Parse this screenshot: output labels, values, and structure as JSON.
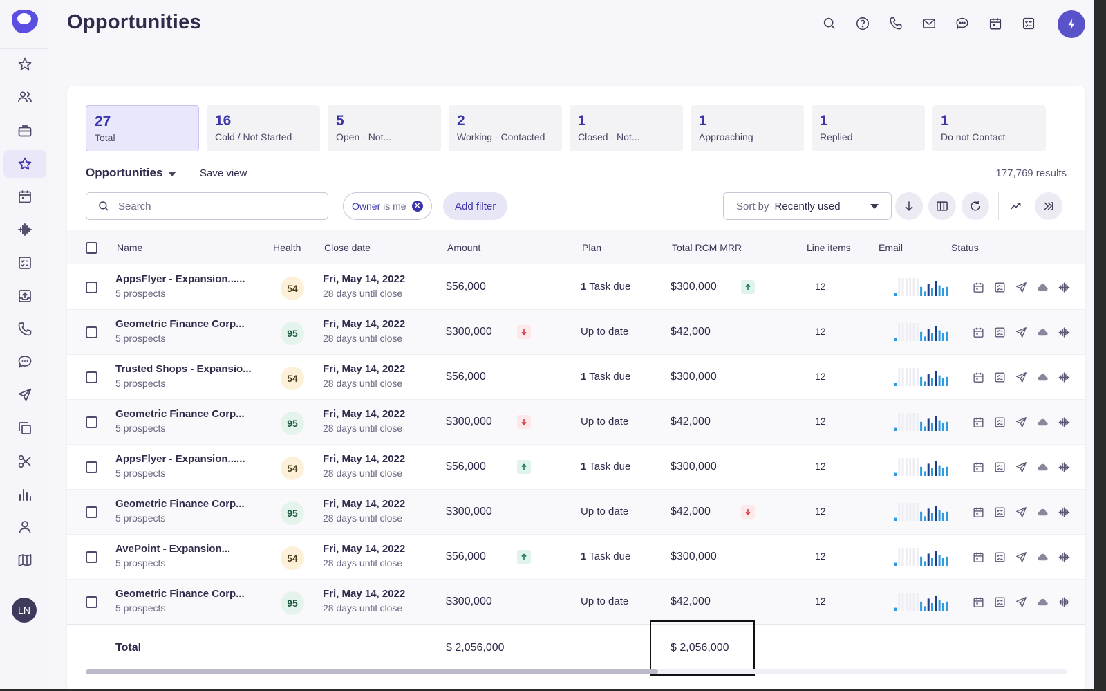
{
  "page": {
    "title": "Opportunities"
  },
  "sidebar": {
    "items": [
      {
        "name": "star"
      },
      {
        "name": "people"
      },
      {
        "name": "briefcase"
      },
      {
        "name": "star",
        "active": true
      },
      {
        "name": "calendar"
      },
      {
        "name": "waveform"
      },
      {
        "name": "tasks"
      },
      {
        "name": "upload"
      },
      {
        "name": "phone"
      },
      {
        "name": "chat"
      },
      {
        "name": "send"
      },
      {
        "name": "copy"
      },
      {
        "name": "scissors"
      },
      {
        "name": "bar-chart"
      },
      {
        "name": "person"
      },
      {
        "name": "map"
      }
    ],
    "avatar": "LN"
  },
  "header": {
    "icons": [
      "search-icon",
      "help-icon",
      "phone-icon",
      "mail-icon",
      "chat-icon",
      "calendar-icon",
      "tasks-icon"
    ],
    "action_button": "bolt-icon"
  },
  "stats": [
    {
      "count": "27",
      "label": "Total",
      "active": true
    },
    {
      "count": "16",
      "label": "Cold / Not Started"
    },
    {
      "count": "5",
      "label": "Open - Not..."
    },
    {
      "count": "2",
      "label": "Working - Contacted"
    },
    {
      "count": "1",
      "label": "Closed - Not..."
    },
    {
      "count": "1",
      "label": "Approaching"
    },
    {
      "count": "1",
      "label": "Replied"
    },
    {
      "count": "1",
      "label": "Do not Contact"
    }
  ],
  "toolbar": {
    "view_name": "Opportunities",
    "save_view": "Save view",
    "results": "177,769 results",
    "search_placeholder": "Search",
    "owner_chip_key": "Owner",
    "owner_chip_value": "is me",
    "add_filter": "Add filter",
    "sort_label": "Sort by",
    "sort_value": "Recently used"
  },
  "table": {
    "columns": {
      "name": "Name",
      "health": "Health",
      "close_date": "Close date",
      "amount": "Amount",
      "plan": "Plan",
      "total_rcm_mrr": "Total RCM MRR",
      "line_items": "Line items",
      "email": "Email",
      "status": "Status"
    },
    "rows": [
      {
        "name": "AppsFlyer - Expansion......",
        "prospects": "5 prospects",
        "health": "54",
        "date": "Fri, May 14, 2022",
        "until": "28 days until close",
        "amount": "$56,000",
        "amount_trend": "",
        "plan_bold": "1",
        "plan": "Task due",
        "mrr": "$300,000",
        "mrr_trend": "up",
        "line_items": "12"
      },
      {
        "name": "Geometric Finance Corp...",
        "prospects": "5 prospects",
        "health": "95",
        "date": "Fri, May 14, 2022",
        "until": "28 days until close",
        "amount": "$300,000",
        "amount_trend": "down",
        "plan_bold": "",
        "plan": "Up to date",
        "mrr": "$42,000",
        "mrr_trend": "",
        "line_items": "12"
      },
      {
        "name": "Trusted Shops - Expansio...",
        "prospects": "5 prospects",
        "health": "54",
        "date": "Fri, May 14, 2022",
        "until": "28 days until close",
        "amount": "$56,000",
        "amount_trend": "",
        "plan_bold": "1",
        "plan": "Task due",
        "mrr": "$300,000",
        "mrr_trend": "",
        "line_items": "12"
      },
      {
        "name": "Geometric Finance Corp...",
        "prospects": "5 prospects",
        "health": "95",
        "date": "Fri, May 14, 2022",
        "until": "28 days until close",
        "amount": "$300,000",
        "amount_trend": "down",
        "plan_bold": "",
        "plan": "Up to date",
        "mrr": "$42,000",
        "mrr_trend": "",
        "line_items": "12"
      },
      {
        "name": "AppsFlyer - Expansion......",
        "prospects": "5 prospects",
        "health": "54",
        "date": "Fri, May 14, 2022",
        "until": "28 days until close",
        "amount": "$56,000",
        "amount_trend": "up",
        "plan_bold": "1",
        "plan": "Task due",
        "mrr": "$300,000",
        "mrr_trend": "",
        "line_items": "12"
      },
      {
        "name": "Geometric Finance Corp...",
        "prospects": "5 prospects",
        "health": "95",
        "date": "Fri, May 14, 2022",
        "until": "28 days until close",
        "amount": "$300,000",
        "amount_trend": "",
        "plan_bold": "",
        "plan": "Up to date",
        "mrr": "$42,000",
        "mrr_trend": "down",
        "line_items": "12"
      },
      {
        "name": "AvePoint - Expansion...",
        "prospects": "5 prospects",
        "health": "54",
        "date": "Fri, May 14, 2022",
        "until": "28 days until close",
        "amount": "$56,000",
        "amount_trend": "up",
        "plan_bold": "1",
        "plan": "Task due",
        "mrr": "$300,000",
        "mrr_trend": "",
        "line_items": "12"
      },
      {
        "name": "Geometric Finance Corp...",
        "prospects": "5 prospects",
        "health": "95",
        "date": "Fri, May 14, 2022",
        "until": "28 days until close",
        "amount": "$300,000",
        "amount_trend": "",
        "plan_bold": "",
        "plan": "Up to date",
        "mrr": "$42,000",
        "mrr_trend": "",
        "line_items": "12"
      }
    ],
    "total_label": "Total",
    "total_amount": "$ 2,056,000",
    "total_mrr": "$ 2,056,000"
  },
  "colors": {
    "accent": "#5952c8",
    "accent_dark": "#3c35a9",
    "spark_blue": "#2f9ae0",
    "spark_dark": "#1c3f8a",
    "icon": "#4d4968"
  }
}
